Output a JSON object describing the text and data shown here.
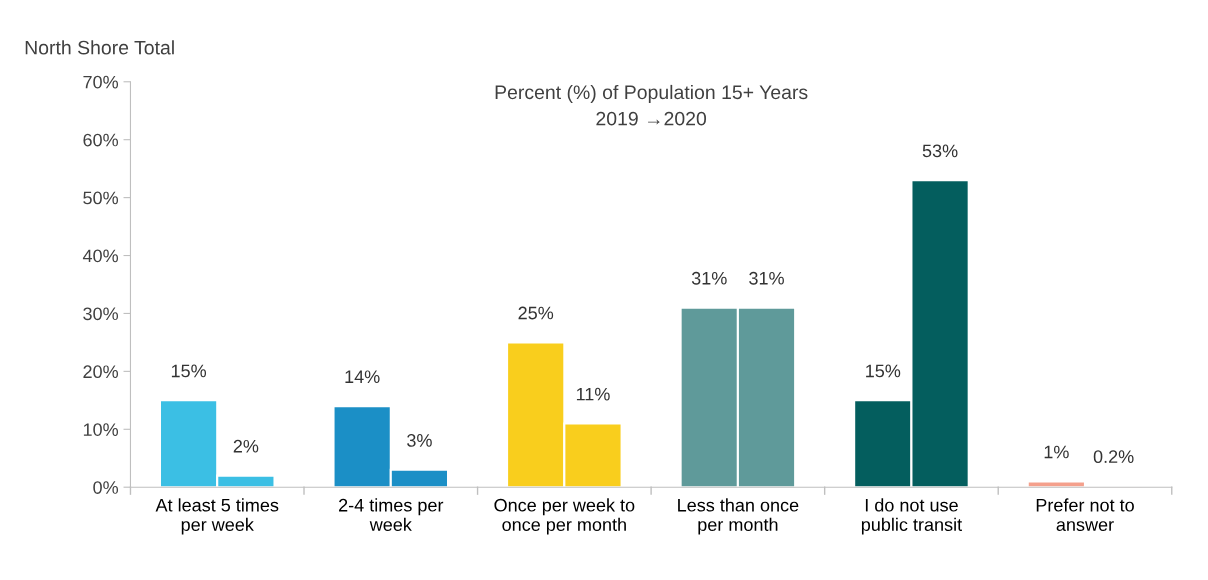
{
  "chart_data": {
    "type": "bar",
    "title": "Percent (%) of Population 15+ Years",
    "subtitle": "2019 →2020",
    "annotations": [
      "North Shore Total"
    ],
    "categories": [
      "At least 5 times per week",
      "2-4 times per week",
      "Once per week to once per month",
      "Less than once per month",
      "I do not use public transit",
      "Prefer not to answer"
    ],
    "series": [
      {
        "values": [
          15,
          14,
          25,
          31,
          15,
          1
        ],
        "colors": [
          "#3bbfe4",
          "#1b8fc6",
          "#f9ce1d",
          "#5f9a9a",
          "#045e5e",
          "#f4a08c"
        ],
        "value_labels": [
          "15%",
          "14%",
          "25%",
          "31%",
          "15%",
          "1%"
        ]
      },
      {
        "values": [
          2,
          3,
          11,
          31,
          53,
          0.2
        ],
        "colors": [
          "#3bbfe4",
          "#1b8fc6",
          "#f9ce1d",
          "#5f9a9a",
          "#045e5e",
          "#f4a08c"
        ],
        "value_labels": [
          "2%",
          "3%",
          "11%",
          "31%",
          "53%",
          "0.2%"
        ]
      }
    ],
    "ylim": [
      0,
      70
    ],
    "yticks": [
      {
        "value": 0,
        "label": "0%"
      },
      {
        "value": 10,
        "label": "10%"
      },
      {
        "value": 20,
        "label": "20%"
      },
      {
        "value": 30,
        "label": "30%"
      },
      {
        "value": 40,
        "label": "40%"
      },
      {
        "value": 50,
        "label": "50%"
      },
      {
        "value": 60,
        "label": "60%"
      },
      {
        "value": 70,
        "label": "70%"
      }
    ],
    "grid": false,
    "legend": false
  }
}
